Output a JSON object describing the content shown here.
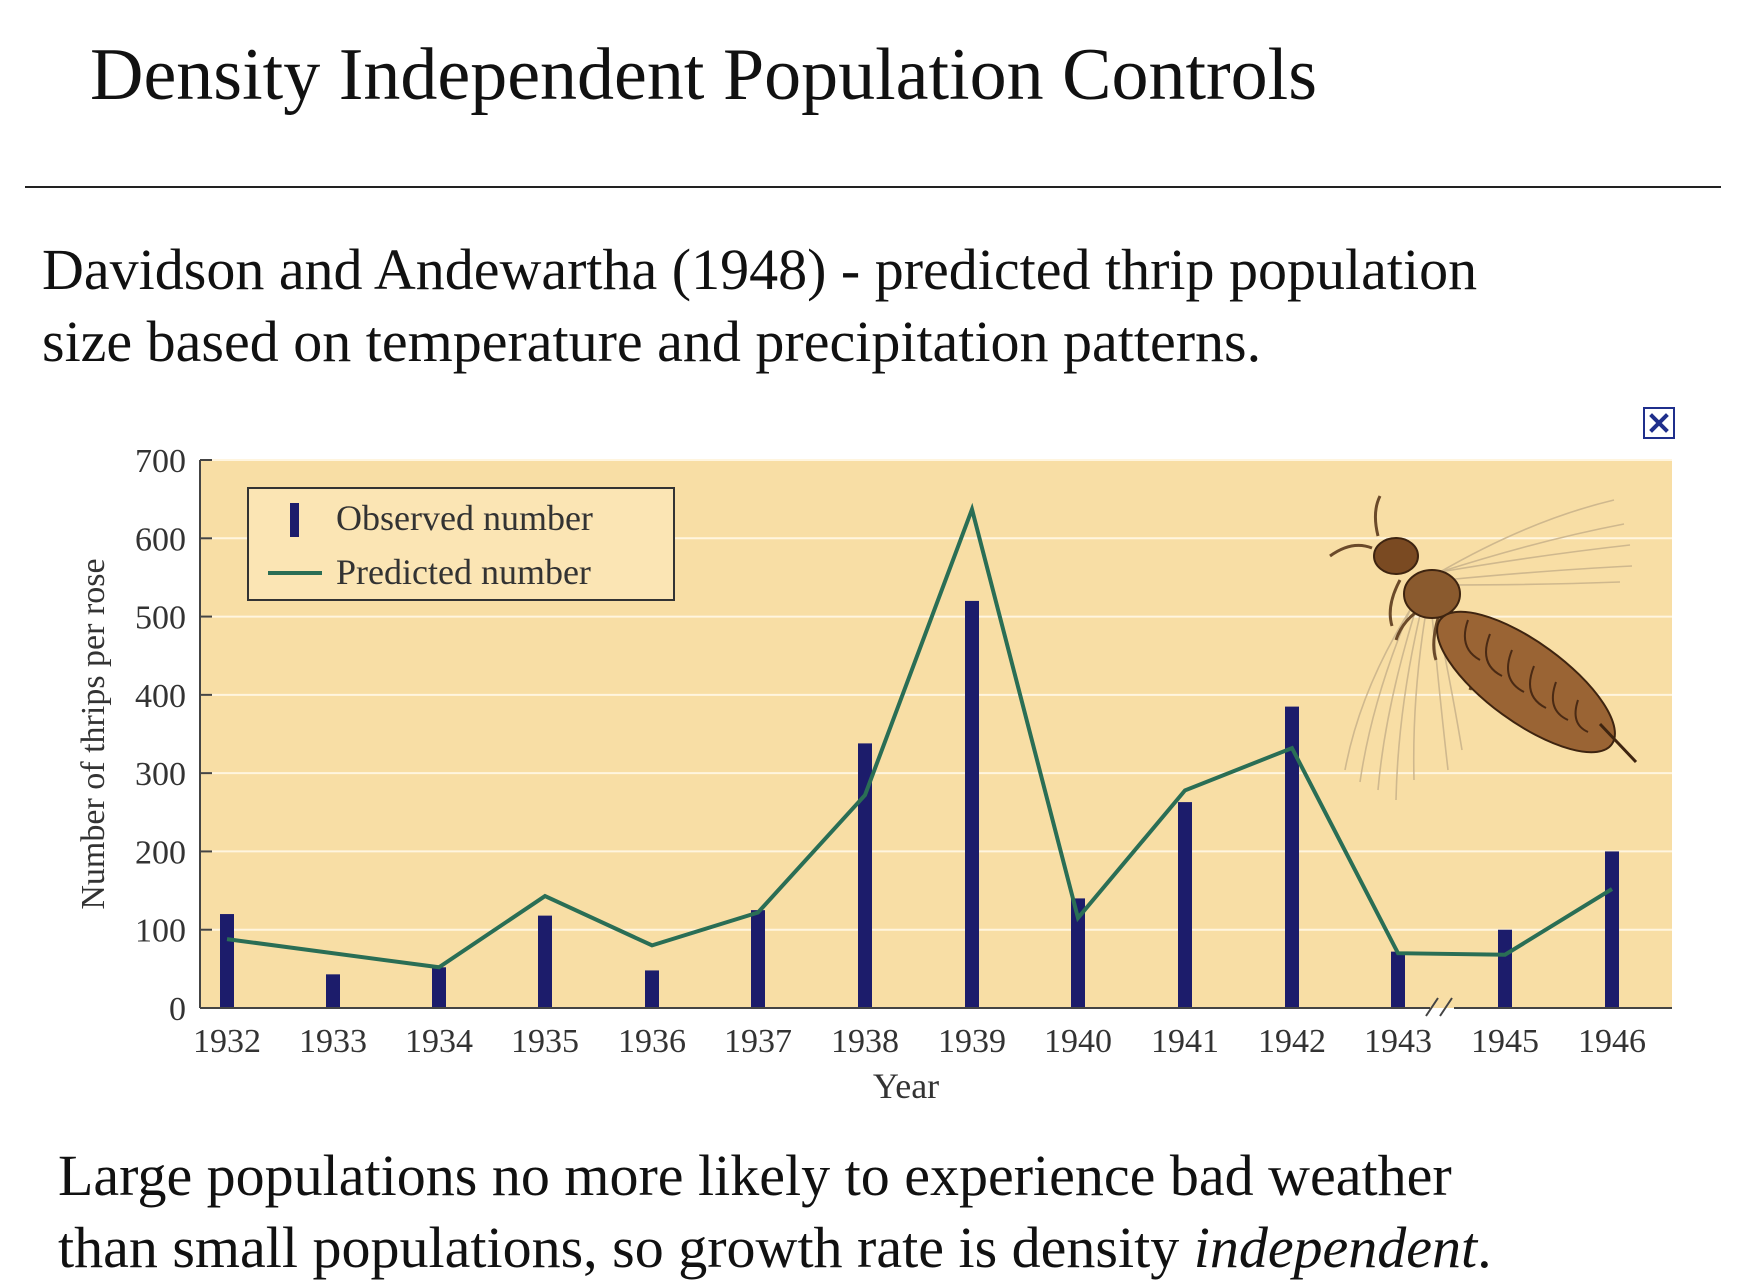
{
  "slide": {
    "title": "Density Independent Population Controls",
    "intro_line1": "Davidson and Andewartha (1948) - predicted thrip population",
    "intro_line2": "size based on temperature and precipitation patterns.",
    "conclusion_line1": "Large populations no more likely to experience bad weather",
    "conclusion_line2_start": "than small populations, so growth rate is density ",
    "conclusion_line2_emph": "independent",
    "conclusion_line2_end": "."
  },
  "icons": {
    "close": "close-icon",
    "illustration": "thrip-insect-icon"
  },
  "colors": {
    "plot_background": "#f8dea5",
    "observed_bar": "#1c1c6b",
    "predicted_line": "#2a6e55",
    "gridline": "#fff5df",
    "close_icon": "#1f2f8c"
  },
  "chart_data": {
    "type": "bar",
    "xlabel": "Year",
    "ylabel": "Number of thrips per rose",
    "ylim": [
      0,
      700
    ],
    "yticks": [
      0,
      100,
      200,
      300,
      400,
      500,
      600,
      700
    ],
    "categories": [
      "1932",
      "1933",
      "1934",
      "1935",
      "1936",
      "1937",
      "1938",
      "1939",
      "1940",
      "1941",
      "1942",
      "1943",
      "1945",
      "1946"
    ],
    "axis_break": "between 1943 and 1945",
    "grid": true,
    "legend": "top-left",
    "series": [
      {
        "name": "Observed number",
        "type": "bar",
        "values": [
          120,
          43,
          52,
          118,
          48,
          125,
          338,
          520,
          140,
          263,
          385,
          72,
          100,
          200
        ]
      },
      {
        "name": "Predicted number",
        "type": "line",
        "values": [
          88,
          null,
          52,
          143,
          80,
          122,
          272,
          637,
          115,
          278,
          332,
          70,
          68,
          152
        ]
      }
    ]
  }
}
